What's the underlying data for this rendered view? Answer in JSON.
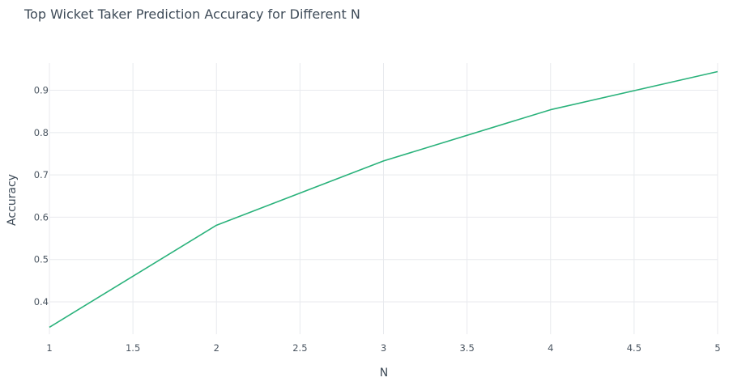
{
  "chart_data": {
    "type": "line",
    "title": "Top Wicket Taker Prediction Accuracy for Different N",
    "xlabel": "N",
    "ylabel": "Accuracy",
    "x": [
      1,
      2,
      3,
      4,
      5
    ],
    "series": [
      {
        "values": [
          0.34,
          0.581,
          0.733,
          0.854,
          0.944
        ],
        "color": "#2ab27b"
      }
    ],
    "xlim": [
      1,
      5
    ],
    "ylim": [
      0.335,
      0.945
    ],
    "xticks": [
      1,
      1.5,
      2,
      2.5,
      3,
      3.5,
      4,
      4.5,
      5
    ],
    "xtick_labels": [
      "1",
      "1.5",
      "2",
      "2.5",
      "3",
      "3.5",
      "4",
      "4.5",
      "5"
    ],
    "yticks": [
      0.4,
      0.5,
      0.6,
      0.7,
      0.8,
      0.9
    ],
    "ytick_labels": [
      "0.4",
      "0.5",
      "0.6",
      "0.7",
      "0.8",
      "0.9"
    ],
    "grid": true,
    "legend": "none",
    "gridColor": "#e8eaee",
    "textColor": "#4a5561"
  }
}
